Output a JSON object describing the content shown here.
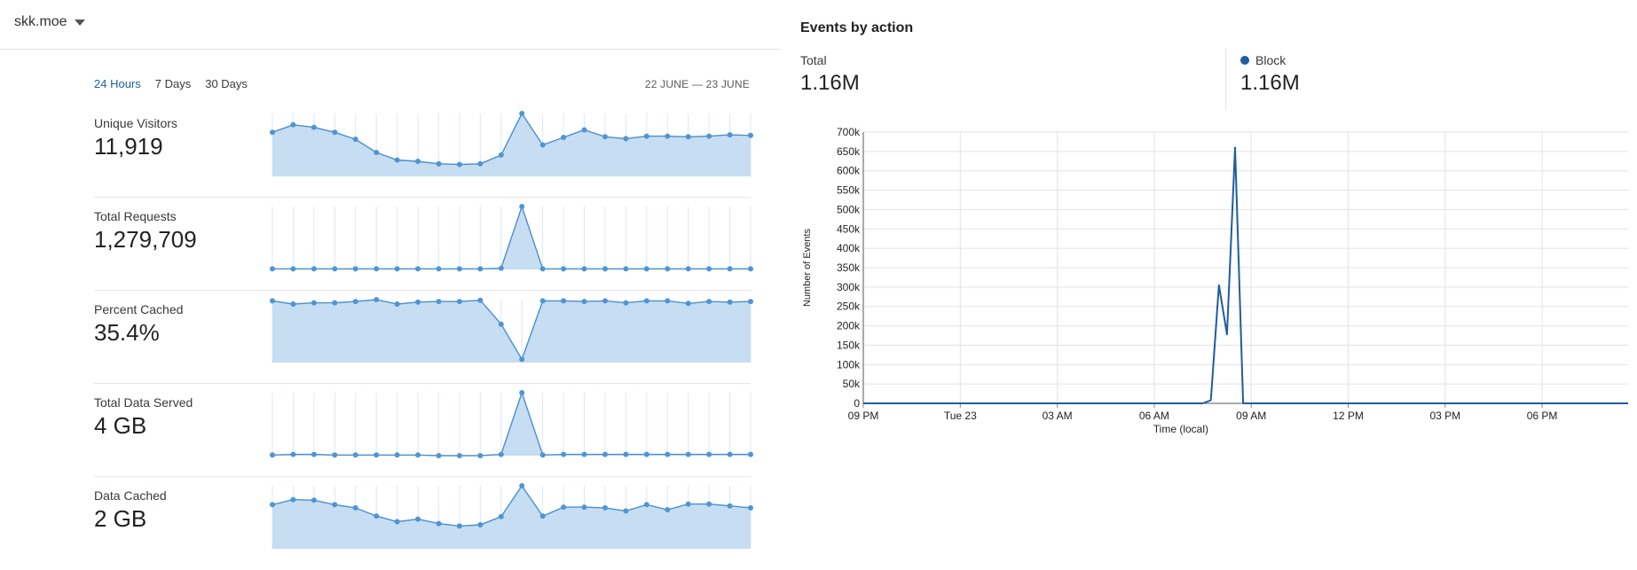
{
  "zone": {
    "name": "skk.moe"
  },
  "time_tabs": [
    {
      "label": "24 Hours",
      "active": true
    },
    {
      "label": "7 Days",
      "active": false
    },
    {
      "label": "30 Days",
      "active": false
    }
  ],
  "date_range": "22 JUNE — 23 JUNE",
  "metrics": [
    {
      "label": "Unique Visitors",
      "value": "11,919",
      "spark": [
        0.7,
        0.82,
        0.78,
        0.7,
        0.59,
        0.38,
        0.26,
        0.24,
        0.2,
        0.19,
        0.2,
        0.34,
        1.0,
        0.5,
        0.62,
        0.74,
        0.63,
        0.6,
        0.64,
        0.64,
        0.63,
        0.64,
        0.66,
        0.65
      ]
    },
    {
      "label": "Total Requests",
      "value": "1,279,709",
      "spark": [
        0.01,
        0.01,
        0.01,
        0.01,
        0.01,
        0.01,
        0.01,
        0.01,
        0.01,
        0.01,
        0.01,
        0.02,
        1.0,
        0.01,
        0.01,
        0.01,
        0.01,
        0.01,
        0.01,
        0.01,
        0.01,
        0.01,
        0.01,
        0.01
      ]
    },
    {
      "label": "Percent Cached",
      "value": "35.4%",
      "spark": [
        0.98,
        0.93,
        0.95,
        0.95,
        0.97,
        1.0,
        0.93,
        0.96,
        0.97,
        0.97,
        0.99,
        0.61,
        0.05,
        0.98,
        0.98,
        0.97,
        0.98,
        0.95,
        0.98,
        0.98,
        0.94,
        0.97,
        0.96,
        0.97
      ]
    },
    {
      "label": "Total Data Served",
      "value": "4 GB",
      "spark": [
        0.01,
        0.02,
        0.02,
        0.01,
        0.01,
        0.01,
        0.01,
        0.01,
        0.0,
        0.0,
        0.0,
        0.02,
        1.0,
        0.01,
        0.02,
        0.02,
        0.02,
        0.02,
        0.02,
        0.02,
        0.02,
        0.02,
        0.02,
        0.02
      ]
    },
    {
      "label": "Data Cached",
      "value": "2 GB",
      "spark": [
        0.7,
        0.78,
        0.77,
        0.7,
        0.65,
        0.52,
        0.43,
        0.47,
        0.4,
        0.36,
        0.38,
        0.51,
        1.0,
        0.52,
        0.66,
        0.66,
        0.65,
        0.6,
        0.7,
        0.62,
        0.71,
        0.71,
        0.68,
        0.65
      ]
    }
  ],
  "events": {
    "title": "Events by action",
    "total_label": "Total",
    "total_value": "1.16M",
    "block_label": "Block",
    "block_value": "1.16M",
    "block_color": "#1f5d9e"
  },
  "chart_data": {
    "type": "line",
    "title": "",
    "xlabel": "Time (local)",
    "ylabel": "Number of Events",
    "ylim": [
      0,
      700000
    ],
    "y_ticks": [
      "0",
      "50k",
      "100k",
      "150k",
      "200k",
      "250k",
      "300k",
      "350k",
      "400k",
      "450k",
      "500k",
      "550k",
      "600k",
      "650k",
      "700k"
    ],
    "x_ticks": [
      "09 PM",
      "Tue 23",
      "03 AM",
      "06 AM",
      "09 AM",
      "12 PM",
      "03 PM",
      "06 PM"
    ],
    "grid": true,
    "series": [
      {
        "name": "Block",
        "color": "#1f5d9e",
        "x_hours": [
          0,
          10.5,
          10.75,
          11.0,
          11.25,
          11.5,
          11.75,
          12.0,
          24
        ],
        "values": [
          0,
          0,
          8000,
          305000,
          178000,
          660000,
          0,
          0,
          0
        ]
      }
    ]
  }
}
